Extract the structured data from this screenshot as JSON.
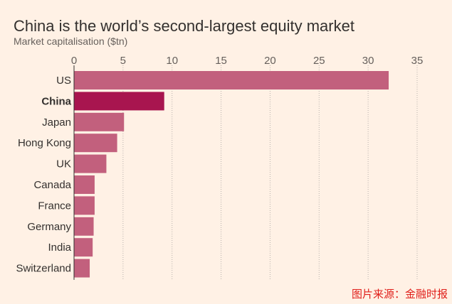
{
  "title": "China is the world’s second-largest equity market",
  "subtitle": "Market capitalisation ($tn)",
  "source": "图片来源：金融时报",
  "colors": {
    "background": "#fff1e5",
    "bar": "#c2607d",
    "highlight": "#a8154f",
    "grid": "#b8b2ad",
    "text": "#33302e"
  },
  "chart_data": {
    "type": "bar",
    "orientation": "horizontal",
    "categories": [
      "US",
      "China",
      "Japan",
      "Hong Kong",
      "UK",
      "Canada",
      "France",
      "Germany",
      "India",
      "Switzerland"
    ],
    "values": [
      32.1,
      9.2,
      5.1,
      4.4,
      3.3,
      2.1,
      2.1,
      2.0,
      1.9,
      1.6
    ],
    "highlight": "China",
    "xlim": [
      0,
      35
    ],
    "xticks": [
      0,
      5,
      10,
      15,
      20,
      25,
      30,
      35
    ],
    "x_axis_position": "top",
    "grid": true
  }
}
